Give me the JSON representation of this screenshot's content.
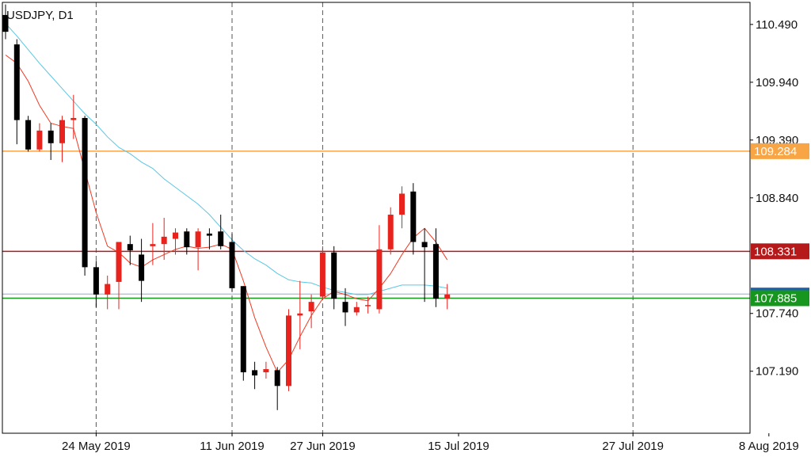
{
  "symbol_label": "USDJPY, D1",
  "chart_data": {
    "type": "candlestick",
    "title": "USDJPY, D1",
    "y_ticks": [
      "110.490",
      "109.940",
      "109.390",
      "108.840",
      "107.740",
      "107.190"
    ],
    "x_ticks": [
      "24 May 2019",
      "11 Jun 2019",
      "27 Jun 2019",
      "15 Jul 2019",
      "27 Jul 2019",
      "8 Aug 2019"
    ],
    "ylim": [
      106.6,
      110.7
    ],
    "grid": false,
    "date_separators": [
      "24 May 2019",
      "11 Jun 2019",
      "27 Jun 2019",
      "27 Jul 2019"
    ],
    "horizontal_levels": [
      {
        "value": 109.284,
        "label": "109.284",
        "color": "#f7a545"
      },
      {
        "value": 108.331,
        "label": "108.331",
        "color": "#b5191a"
      },
      {
        "value": 107.885,
        "label": "107.885",
        "color": "#16961e"
      },
      {
        "value": 107.925,
        "label": "107.925",
        "color": "#1f5ea8"
      }
    ],
    "candles": [
      {
        "open": 110.58,
        "high": 110.68,
        "low": 110.35,
        "close": 110.42
      },
      {
        "open": 110.3,
        "high": 110.35,
        "low": 109.35,
        "close": 109.58
      },
      {
        "open": 109.58,
        "high": 109.62,
        "low": 109.28,
        "close": 109.3
      },
      {
        "open": 109.3,
        "high": 109.55,
        "low": 109.28,
        "close": 109.48
      },
      {
        "open": 109.48,
        "high": 109.55,
        "low": 109.2,
        "close": 109.36
      },
      {
        "open": 109.36,
        "high": 109.62,
        "low": 109.18,
        "close": 109.58
      },
      {
        "open": 109.58,
        "high": 109.82,
        "low": 109.4,
        "close": 109.6
      },
      {
        "open": 109.6,
        "high": 109.62,
        "low": 108.1,
        "close": 108.18
      },
      {
        "open": 108.18,
        "high": 108.24,
        "low": 107.8,
        "close": 107.92
      },
      {
        "open": 107.92,
        "high": 108.1,
        "low": 107.78,
        "close": 108.02
      },
      {
        "open": 108.04,
        "high": 108.42,
        "low": 107.78,
        "close": 108.42
      },
      {
        "open": 108.4,
        "high": 108.48,
        "low": 108.2,
        "close": 108.34
      },
      {
        "open": 108.3,
        "high": 108.45,
        "low": 107.85,
        "close": 108.05
      },
      {
        "open": 108.38,
        "high": 108.6,
        "low": 108.2,
        "close": 108.4
      },
      {
        "open": 108.4,
        "high": 108.65,
        "low": 108.25,
        "close": 108.47
      },
      {
        "open": 108.45,
        "high": 108.55,
        "low": 108.3,
        "close": 108.51
      },
      {
        "open": 108.52,
        "high": 108.55,
        "low": 108.3,
        "close": 108.37
      },
      {
        "open": 108.37,
        "high": 108.55,
        "low": 108.15,
        "close": 108.52
      },
      {
        "open": 108.5,
        "high": 108.55,
        "low": 108.35,
        "close": 108.48
      },
      {
        "open": 108.52,
        "high": 108.68,
        "low": 108.35,
        "close": 108.38
      },
      {
        "open": 108.42,
        "high": 108.5,
        "low": 107.95,
        "close": 107.98
      },
      {
        "open": 108.0,
        "high": 108.0,
        "low": 107.1,
        "close": 107.18
      },
      {
        "open": 107.2,
        "high": 107.28,
        "low": 107.02,
        "close": 107.15
      },
      {
        "open": 107.18,
        "high": 107.28,
        "low": 107.12,
        "close": 107.21
      },
      {
        "open": 107.2,
        "high": 107.23,
        "low": 106.82,
        "close": 107.05
      },
      {
        "open": 107.05,
        "high": 107.78,
        "low": 107.0,
        "close": 107.72
      },
      {
        "open": 107.72,
        "high": 108.05,
        "low": 107.4,
        "close": 107.74
      },
      {
        "open": 107.76,
        "high": 107.92,
        "low": 107.6,
        "close": 107.85
      },
      {
        "open": 107.9,
        "high": 108.38,
        "low": 107.88,
        "close": 108.32
      },
      {
        "open": 108.32,
        "high": 108.38,
        "low": 107.78,
        "close": 107.88
      },
      {
        "open": 107.85,
        "high": 107.98,
        "low": 107.62,
        "close": 107.75
      },
      {
        "open": 107.75,
        "high": 107.85,
        "low": 107.72,
        "close": 107.8
      },
      {
        "open": 107.82,
        "high": 107.9,
        "low": 107.74,
        "close": 107.82
      },
      {
        "open": 107.78,
        "high": 108.58,
        "low": 107.74,
        "close": 108.35
      },
      {
        "open": 108.35,
        "high": 108.75,
        "low": 108.3,
        "close": 108.68
      },
      {
        "open": 108.68,
        "high": 108.95,
        "low": 108.55,
        "close": 108.88
      },
      {
        "open": 108.9,
        "high": 108.98,
        "low": 108.3,
        "close": 108.42
      },
      {
        "open": 108.42,
        "high": 108.55,
        "low": 107.85,
        "close": 108.37
      },
      {
        "open": 108.4,
        "high": 108.55,
        "low": 107.8,
        "close": 107.88
      },
      {
        "open": 107.88,
        "high": 108.02,
        "low": 107.78,
        "close": 107.92
      }
    ],
    "ma_fast": [
      110.2,
      110.12,
      109.95,
      109.72,
      109.55,
      109.52,
      109.5,
      109.1,
      108.7,
      108.38,
      108.32,
      108.22,
      108.18,
      108.25,
      108.3,
      108.35,
      108.38,
      108.36,
      108.37,
      108.4,
      108.35,
      108.05,
      107.7,
      107.42,
      107.18,
      107.3,
      107.52,
      107.72,
      107.88,
      107.95,
      107.92,
      107.88,
      107.86,
      107.98,
      108.12,
      108.3,
      108.46,
      108.55,
      108.42,
      108.25
    ],
    "ma_slow": [
      110.5,
      110.38,
      110.25,
      110.12,
      110.0,
      109.88,
      109.76,
      109.64,
      109.54,
      109.42,
      109.32,
      109.26,
      109.18,
      109.12,
      109.02,
      108.94,
      108.86,
      108.78,
      108.68,
      108.56,
      108.44,
      108.34,
      108.26,
      108.2,
      108.12,
      108.06,
      108.04,
      108.03,
      107.99,
      107.96,
      107.94,
      107.92,
      107.92,
      107.95,
      107.98,
      108.01,
      108.01,
      108.01,
      108.0,
      107.98
    ],
    "ma_fast_color": "#f03a24",
    "ma_slow_color": "#5bc6e3",
    "bull_color": "#e8231d",
    "bear_color": "#000000"
  }
}
